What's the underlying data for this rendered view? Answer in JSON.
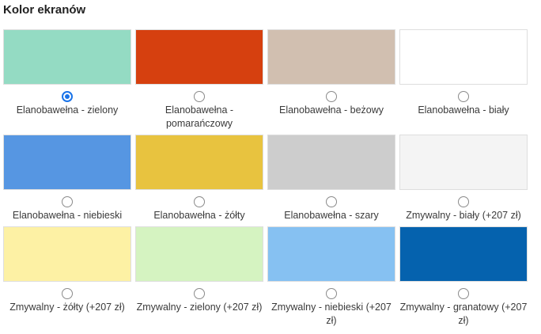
{
  "section_title": "Kolor ekranów",
  "options": [
    {
      "label": "Elanobawełna - zielony",
      "color": "#94dbc3",
      "selected": true
    },
    {
      "label": "Elanobawełna - pomarańczowy",
      "color": "#d6400f",
      "selected": false
    },
    {
      "label": "Elanobawełna - beżowy",
      "color": "#d1bfb0",
      "selected": false
    },
    {
      "label": "Elanobawełna - biały",
      "color": "#ffffff",
      "selected": false
    },
    {
      "label": "Elanobawełna - niebieski",
      "color": "#5696e2",
      "selected": false
    },
    {
      "label": "Elanobawełna - żółty",
      "color": "#e8c33f",
      "selected": false
    },
    {
      "label": "Elanobawełna - szary",
      "color": "#cdcdcd",
      "selected": false
    },
    {
      "label": "Zmywalny - biały (+207 zł)",
      "color": "#f4f4f4",
      "selected": false
    },
    {
      "label": "Zmywalny - żółty (+207 zł)",
      "color": "#fdf1a4",
      "selected": false
    },
    {
      "label": "Zmywalny - zielony (+207 zł)",
      "color": "#d5f3c1",
      "selected": false
    },
    {
      "label": "Zmywalny - niebieski (+207 zł)",
      "color": "#86c1f2",
      "selected": false
    },
    {
      "label": "Zmywalny - granatowy (+207 zł)",
      "color": "#0562ae",
      "selected": false
    }
  ]
}
